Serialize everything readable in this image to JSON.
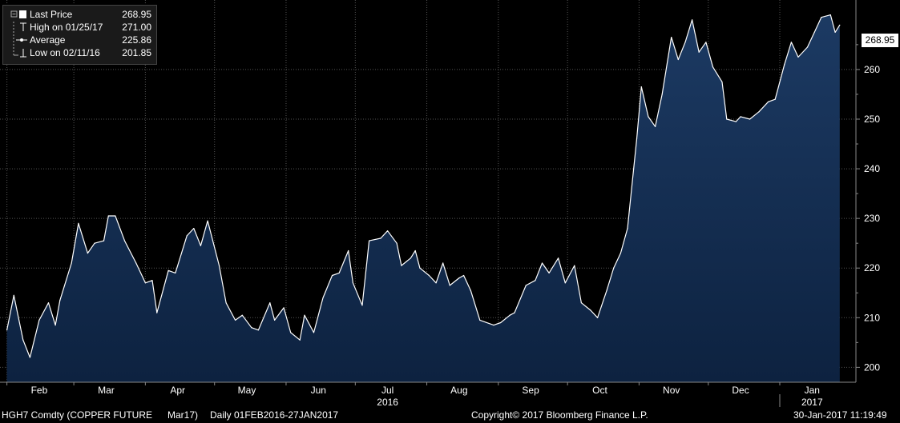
{
  "legend": {
    "items": [
      {
        "label": "Last Price",
        "value": "268.95",
        "icon": "filled-square-icon"
      },
      {
        "label": "High on 01/25/17",
        "value": "271.00",
        "icon": "high-marker-icon"
      },
      {
        "label": "Average",
        "value": "225.86",
        "icon": "average-line-icon"
      },
      {
        "label": "Low on 02/11/16",
        "value": "201.85",
        "icon": "low-marker-icon"
      }
    ]
  },
  "last_price_label": "268.95",
  "footer": {
    "ticker": "HGH7 Comdty (COPPER FUTURE",
    "contract": "Mar17)",
    "range": "Daily 01FEB2016-27JAN2017",
    "copyright": "Copyright© 2017 Bloomberg Finance L.P.",
    "timestamp": "30-Jan-2017 11:19:49"
  },
  "colors": {
    "background": "#000000",
    "line": "#ffffff",
    "area_top": "#1c3a63",
    "area_bottom": "#0d2240",
    "grid": "#555555"
  },
  "chart_data": {
    "type": "area",
    "title": "",
    "xlabel": "",
    "ylabel": "",
    "y_axis_side": "right",
    "ylim": [
      197,
      274
    ],
    "yticks": [
      200,
      210,
      220,
      230,
      240,
      250,
      260
    ],
    "grid": true,
    "legend_placement": "top-left",
    "x_labels": [
      {
        "label": "Feb",
        "date": "2016-02-01"
      },
      {
        "label": "Mar",
        "date": "2016-03-01"
      },
      {
        "label": "Apr",
        "date": "2016-04-01"
      },
      {
        "label": "May",
        "date": "2016-05-01"
      },
      {
        "label": "Jun",
        "date": "2016-06-01"
      },
      {
        "label": "Jul",
        "date": "2016-07-01"
      },
      {
        "label": "Aug",
        "date": "2016-08-01"
      },
      {
        "label": "Sep",
        "date": "2016-09-01"
      },
      {
        "label": "Oct",
        "date": "2016-10-01"
      },
      {
        "label": "Nov",
        "date": "2016-11-01"
      },
      {
        "label": "Dec",
        "date": "2016-12-01"
      },
      {
        "label": "Jan",
        "date": "2017-01-01"
      }
    ],
    "year_labels": [
      {
        "label": "2016",
        "date": "2016-07-01"
      },
      {
        "label": "2017",
        "date": "2017-01-01"
      }
    ],
    "series": [
      {
        "name": "Last Price",
        "points": [
          [
            "2016-02-01",
            207.5
          ],
          [
            "2016-02-04",
            214.5
          ],
          [
            "2016-02-08",
            205.5
          ],
          [
            "2016-02-11",
            202.0
          ],
          [
            "2016-02-15",
            209.5
          ],
          [
            "2016-02-19",
            213.0
          ],
          [
            "2016-02-22",
            208.5
          ],
          [
            "2016-02-24",
            213.5
          ],
          [
            "2016-02-29",
            221.0
          ],
          [
            "2016-03-03",
            229.0
          ],
          [
            "2016-03-07",
            223.0
          ],
          [
            "2016-03-10",
            225.0
          ],
          [
            "2016-03-14",
            225.5
          ],
          [
            "2016-03-16",
            230.5
          ],
          [
            "2016-03-19",
            230.5
          ],
          [
            "2016-03-23",
            225.5
          ],
          [
            "2016-03-28",
            221.0
          ],
          [
            "2016-04-01",
            217.0
          ],
          [
            "2016-04-04",
            217.5
          ],
          [
            "2016-04-06",
            211.0
          ],
          [
            "2016-04-11",
            219.5
          ],
          [
            "2016-04-14",
            219.0
          ],
          [
            "2016-04-19",
            226.5
          ],
          [
            "2016-04-22",
            228.0
          ],
          [
            "2016-04-25",
            224.5
          ],
          [
            "2016-04-28",
            229.5
          ],
          [
            "2016-05-03",
            220.5
          ],
          [
            "2016-05-06",
            213.0
          ],
          [
            "2016-05-10",
            209.5
          ],
          [
            "2016-05-13",
            210.5
          ],
          [
            "2016-05-17",
            208.0
          ],
          [
            "2016-05-20",
            207.5
          ],
          [
            "2016-05-25",
            213.0
          ],
          [
            "2016-05-27",
            209.5
          ],
          [
            "2016-05-31",
            212.0
          ],
          [
            "2016-06-03",
            207.0
          ],
          [
            "2016-06-07",
            205.5
          ],
          [
            "2016-06-09",
            210.5
          ],
          [
            "2016-06-13",
            207.0
          ],
          [
            "2016-06-17",
            214.0
          ],
          [
            "2016-06-21",
            218.5
          ],
          [
            "2016-06-24",
            219.0
          ],
          [
            "2016-06-28",
            223.5
          ],
          [
            "2016-06-30",
            217.0
          ],
          [
            "2016-07-04",
            212.5
          ],
          [
            "2016-07-07",
            225.5
          ],
          [
            "2016-07-12",
            226.0
          ],
          [
            "2016-07-15",
            227.5
          ],
          [
            "2016-07-19",
            225.0
          ],
          [
            "2016-07-21",
            220.5
          ],
          [
            "2016-07-25",
            222.0
          ],
          [
            "2016-07-27",
            223.5
          ],
          [
            "2016-07-29",
            220.0
          ],
          [
            "2016-08-02",
            218.5
          ],
          [
            "2016-08-05",
            217.0
          ],
          [
            "2016-08-08",
            221.0
          ],
          [
            "2016-08-11",
            216.5
          ],
          [
            "2016-08-15",
            218.0
          ],
          [
            "2016-08-17",
            218.5
          ],
          [
            "2016-08-20",
            215.5
          ],
          [
            "2016-08-24",
            209.5
          ],
          [
            "2016-08-30",
            208.5
          ],
          [
            "2016-09-02",
            209.0
          ],
          [
            "2016-09-06",
            210.5
          ],
          [
            "2016-09-08",
            211.0
          ],
          [
            "2016-09-13",
            216.5
          ],
          [
            "2016-09-17",
            217.5
          ],
          [
            "2016-09-20",
            221.0
          ],
          [
            "2016-09-23",
            219.0
          ],
          [
            "2016-09-27",
            222.0
          ],
          [
            "2016-09-30",
            217.0
          ],
          [
            "2016-10-04",
            220.5
          ],
          [
            "2016-10-07",
            213.0
          ],
          [
            "2016-10-11",
            211.5
          ],
          [
            "2016-10-14",
            210.0
          ],
          [
            "2016-10-18",
            215.5
          ],
          [
            "2016-10-21",
            220.0
          ],
          [
            "2016-10-24",
            223.0
          ],
          [
            "2016-10-27",
            228.0
          ],
          [
            "2016-10-31",
            246.0
          ],
          [
            "2016-11-02",
            256.5
          ],
          [
            "2016-11-05",
            250.5
          ],
          [
            "2016-11-08",
            248.5
          ],
          [
            "2016-11-11",
            255.0
          ],
          [
            "2016-11-15",
            266.5
          ],
          [
            "2016-11-18",
            262.0
          ],
          [
            "2016-11-21",
            265.5
          ],
          [
            "2016-11-24",
            270.0
          ],
          [
            "2016-11-27",
            263.5
          ],
          [
            "2016-11-30",
            265.5
          ],
          [
            "2016-12-03",
            260.5
          ],
          [
            "2016-12-07",
            257.5
          ],
          [
            "2016-12-09",
            250.0
          ],
          [
            "2016-12-13",
            249.5
          ],
          [
            "2016-12-15",
            250.5
          ],
          [
            "2016-12-19",
            250.0
          ],
          [
            "2016-12-23",
            251.5
          ],
          [
            "2016-12-27",
            253.5
          ],
          [
            "2016-12-30",
            254.0
          ],
          [
            "2017-01-03",
            261.0
          ],
          [
            "2017-01-06",
            265.5
          ],
          [
            "2017-01-09",
            262.5
          ],
          [
            "2017-01-13",
            264.5
          ],
          [
            "2017-01-16",
            267.5
          ],
          [
            "2017-01-19",
            270.5
          ],
          [
            "2017-01-23",
            271.0
          ],
          [
            "2017-01-25",
            267.5
          ],
          [
            "2017-01-27",
            268.95
          ]
        ]
      }
    ]
  }
}
